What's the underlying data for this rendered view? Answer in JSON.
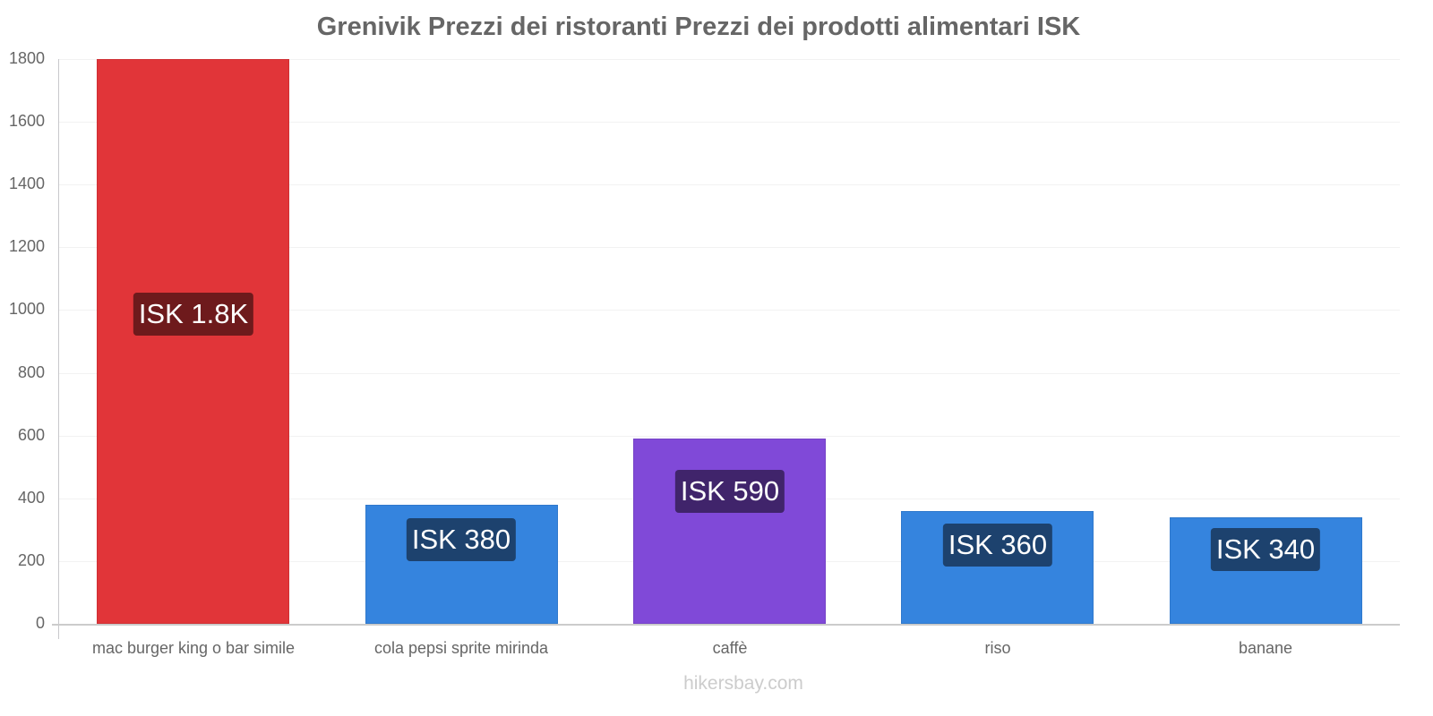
{
  "chart_data": {
    "type": "bar",
    "title": "Grenivik Prezzi dei ristoranti Prezzi dei prodotti alimentari ISK",
    "categories": [
      "mac burger king o bar simile",
      "cola pepsi sprite mirinda",
      "caffè",
      "riso",
      "banane"
    ],
    "values": [
      1800,
      380,
      590,
      360,
      340
    ],
    "value_labels": [
      "ISK 1.8K",
      "ISK 380",
      "ISK 590",
      "ISK 360",
      "ISK 340"
    ],
    "bar_colors": [
      "#e13539",
      "#3584de",
      "#8049d8",
      "#3584de",
      "#3584de"
    ],
    "label_bg_colors": [
      "#6e1a1c",
      "#1d426e",
      "#40246b",
      "#1d426e",
      "#1d426e"
    ],
    "xlabel": "",
    "ylabel": "",
    "ylim": [
      0,
      1800
    ],
    "yticks": [
      0,
      200,
      400,
      600,
      800,
      1000,
      1200,
      1400,
      1600,
      1800
    ],
    "grid": true,
    "legend": "none"
  },
  "header": {
    "title": "Grenivik Prezzi dei ristoranti Prezzi dei prodotti alimentari ISK"
  },
  "axis": {
    "y_ticks": [
      "0",
      "200",
      "400",
      "600",
      "800",
      "1000",
      "1200",
      "1400",
      "1600",
      "1800"
    ]
  },
  "bars": [
    {
      "category": "mac burger king o bar simile",
      "value": 1800,
      "label": "ISK 1.8K",
      "color": "#e13539",
      "label_bg": "#6e1a1c"
    },
    {
      "category": "cola pepsi sprite mirinda",
      "value": 380,
      "label": "ISK 380",
      "color": "#3584de",
      "label_bg": "#1d426e"
    },
    {
      "category": "caffè",
      "value": 590,
      "label": "ISK 590",
      "color": "#8049d8",
      "label_bg": "#40246b"
    },
    {
      "category": "riso",
      "value": 360,
      "label": "ISK 360",
      "color": "#3584de",
      "label_bg": "#1d426e"
    },
    {
      "category": "banane",
      "value": 340,
      "label": "ISK 340",
      "color": "#3584de",
      "label_bg": "#1d426e"
    }
  ],
  "footer": {
    "watermark": "hikersbay.com"
  }
}
